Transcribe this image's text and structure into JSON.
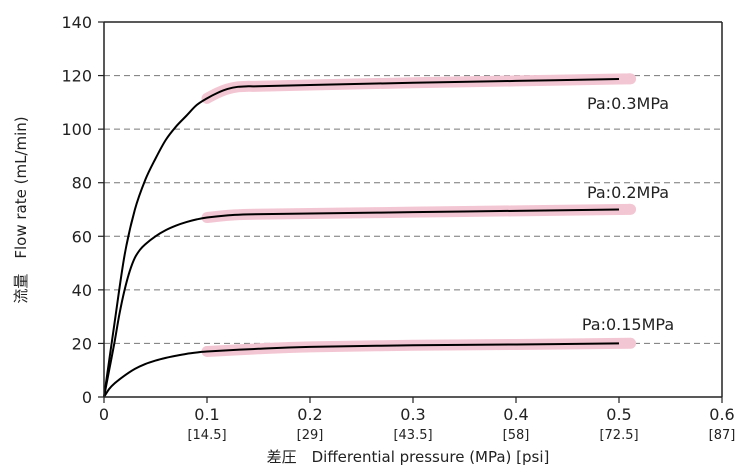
{
  "chart_data": {
    "type": "line",
    "xlabel": "差圧　Differential pressure (MPa) [psi]",
    "ylabel": "流量　Flow rate (mL/min)",
    "xlim": [
      0,
      0.6
    ],
    "ylim": [
      0,
      140
    ],
    "x_ticks": [
      {
        "label": "0",
        "value": 0,
        "psi": ""
      },
      {
        "label": "0.1",
        "value": 0.1,
        "psi": "[14.5]"
      },
      {
        "label": "0.2",
        "value": 0.2,
        "psi": "[29]"
      },
      {
        "label": "0.3",
        "value": 0.3,
        "psi": "[43.5]"
      },
      {
        "label": "0.4",
        "value": 0.4,
        "psi": "[58]"
      },
      {
        "label": "0.5",
        "value": 0.5,
        "psi": "[72.5]"
      },
      {
        "label": "0.6",
        "value": 0.6,
        "psi": "[87]"
      }
    ],
    "y_ticks": [
      {
        "label": "0",
        "value": 0
      },
      {
        "label": "20",
        "value": 20
      },
      {
        "label": "40",
        "value": 40
      },
      {
        "label": "60",
        "value": 60
      },
      {
        "label": "80",
        "value": 80
      },
      {
        "label": "100",
        "value": 100
      },
      {
        "label": "120",
        "value": 120
      },
      {
        "label": "140",
        "value": 140
      }
    ],
    "grid": "horizontal dashed lines at 20-unit intervals",
    "highlight_color": "#f3c6d3",
    "line_color": "#000000",
    "series": [
      {
        "name": "Pa:0.3MPa",
        "x": [
          0,
          0.01,
          0.02,
          0.03,
          0.04,
          0.05,
          0.06,
          0.07,
          0.08,
          0.09,
          0.1,
          0.11,
          0.12,
          0.13,
          0.14,
          0.15,
          0.2,
          0.3,
          0.4,
          0.5
        ],
        "y": [
          0,
          27,
          53,
          70,
          81,
          89,
          96,
          101,
          105,
          109,
          111.5,
          113.5,
          115,
          115.8,
          116,
          116,
          116.5,
          117.3,
          118,
          118.7
        ],
        "highlight_x": [
          0.1,
          0.51
        ]
      },
      {
        "name": "Pa:0.2MPa",
        "x": [
          0,
          0.005,
          0.01,
          0.015,
          0.02,
          0.025,
          0.03,
          0.035,
          0.04,
          0.05,
          0.06,
          0.07,
          0.08,
          0.09,
          0.1,
          0.12,
          0.14,
          0.2,
          0.3,
          0.4,
          0.5
        ],
        "y": [
          0,
          10,
          20,
          31,
          40,
          47,
          52,
          55,
          57,
          60,
          62.3,
          64,
          65.3,
          66.3,
          67,
          67.8,
          68.2,
          68.5,
          69,
          69.5,
          70
        ],
        "highlight_x": [
          0.1,
          0.51
        ]
      },
      {
        "name": "Pa:0.15MPa",
        "x": [
          0,
          0.005,
          0.01,
          0.02,
          0.03,
          0.04,
          0.05,
          0.06,
          0.07,
          0.08,
          0.09,
          0.1,
          0.15,
          0.2,
          0.3,
          0.4,
          0.5
        ],
        "y": [
          0,
          3,
          5,
          8,
          10.5,
          12.3,
          13.6,
          14.6,
          15.4,
          16.1,
          16.6,
          17,
          18,
          18.7,
          19.3,
          19.6,
          20
        ],
        "highlight_x": [
          0.1,
          0.51
        ]
      }
    ]
  }
}
